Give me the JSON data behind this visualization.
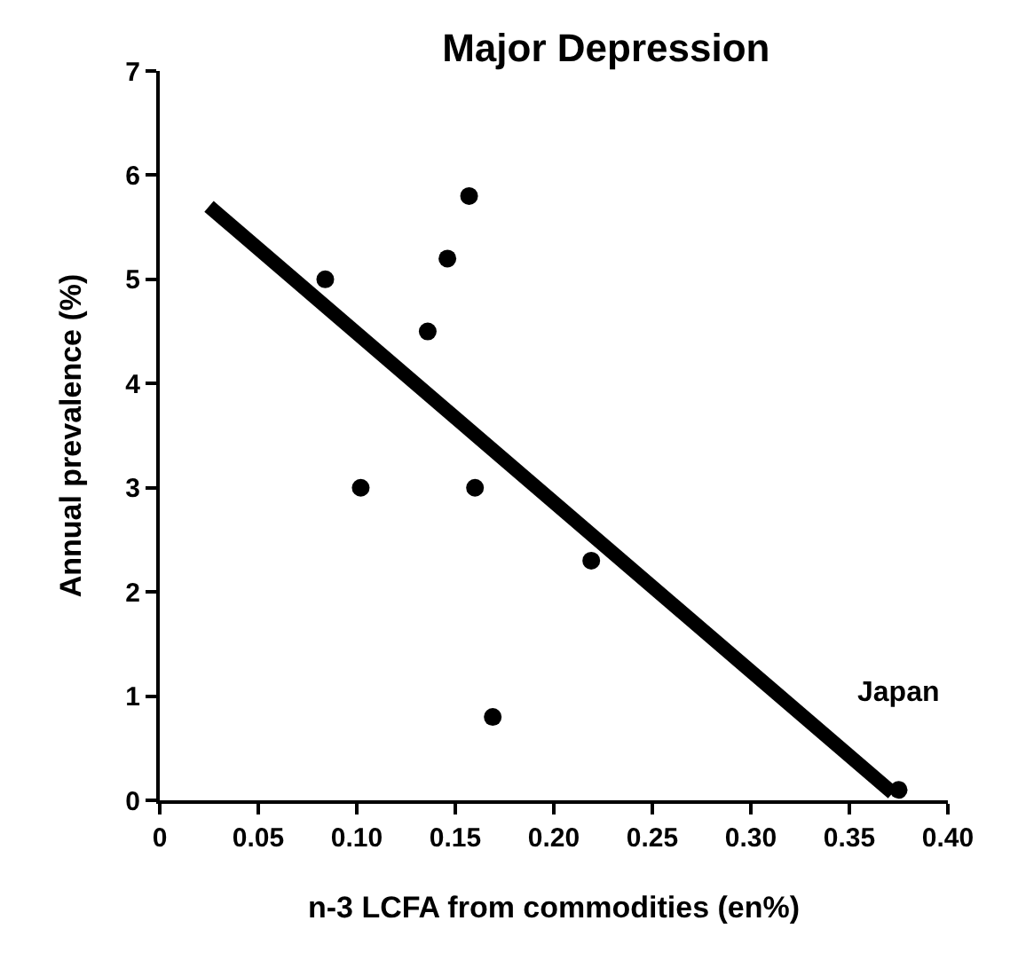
{
  "chart_data": {
    "type": "scatter",
    "title": "Major Depression",
    "xlabel": "n-3 LCFA from commodities (en%)",
    "ylabel": "Annual prevalence (%)",
    "xlim": [
      0,
      0.4
    ],
    "ylim": [
      0,
      7
    ],
    "xticks": [
      {
        "value": 0,
        "label": "0"
      },
      0.05,
      {
        "value": 0.1,
        "label": "0.10"
      },
      0.15,
      {
        "value": 0.2,
        "label": "0.20"
      },
      0.25,
      {
        "value": 0.3,
        "label": "0.30"
      },
      0.35,
      {
        "value": 0.4,
        "label": "0.40"
      }
    ],
    "yticks": [
      0,
      1,
      2,
      3,
      4,
      5,
      6,
      7
    ],
    "marker": "circle",
    "series": [
      {
        "color": "#000000",
        "x": [
          0.084,
          0.102,
          0.136,
          0.146,
          0.157,
          0.16,
          0.169,
          0.219,
          0.375
        ],
        "values": [
          5.0,
          3.0,
          4.5,
          5.2,
          5.8,
          3.0,
          0.8,
          2.3,
          0.1
        ]
      },
      {
        "type": "line",
        "color": "#000000",
        "marker": "none",
        "line_style": "solid",
        "x": [
          0.025,
          0.372
        ],
        "values": [
          5.7,
          0.07
        ]
      }
    ],
    "annotations": [
      {
        "text": "Japan",
        "x": 0.375,
        "y": 0.1
      }
    ]
  }
}
